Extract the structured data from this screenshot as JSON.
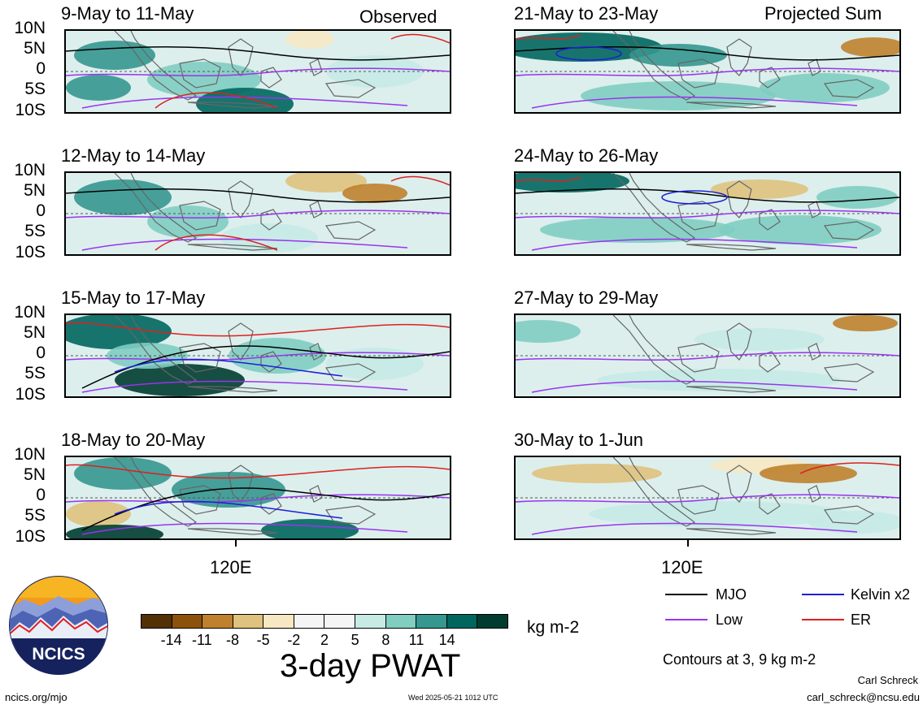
{
  "panels": [
    {
      "title": "9-May to 11-May",
      "tag": "Observed"
    },
    {
      "title": "12-May to 14-May",
      "tag": ""
    },
    {
      "title": "15-May to 17-May",
      "tag": ""
    },
    {
      "title": "18-May to 20-May",
      "tag": ""
    },
    {
      "title": "21-May to 23-May",
      "tag": "Projected Sum"
    },
    {
      "title": "24-May to 26-May",
      "tag": ""
    },
    {
      "title": "27-May to 29-May",
      "tag": ""
    },
    {
      "title": "30-May to 1-Jun",
      "tag": ""
    }
  ],
  "lat_labels": [
    "10N",
    "5N",
    "0",
    "5S",
    "10S"
  ],
  "x_label": "120E",
  "colorbar": {
    "colors": [
      "#543005",
      "#8c510a",
      "#bf812d",
      "#dfc27d",
      "#f6e8c3",
      "#f5f5f5",
      "#f5f5f5",
      "#c7eae5",
      "#80cdc1",
      "#35978f",
      "#01665e",
      "#003c30"
    ],
    "labels": [
      "-14",
      "-11",
      "-8",
      "-5",
      "-2",
      "2",
      "5",
      "8",
      "11",
      "14"
    ],
    "units": "kg m-2",
    "title": "3-day PWAT"
  },
  "legend": {
    "mjo": {
      "label": "MJO",
      "color": "#000000"
    },
    "kelvin": {
      "label": "Kelvin x2",
      "color": "#1f1fd6"
    },
    "low": {
      "label": "Low",
      "color": "#9933ee"
    },
    "er": {
      "label": "ER",
      "color": "#dd2020"
    },
    "contours_note": "Contours at 3, 9 kg m-2"
  },
  "logo": {
    "text": "NCICS"
  },
  "footer": {
    "url": "ncics.org/mjo",
    "timestamp": "Wed 2025-05-21 1012 UTC",
    "author": "Carl Schreck",
    "email": "carl_schreck@ncsu.edu"
  }
}
